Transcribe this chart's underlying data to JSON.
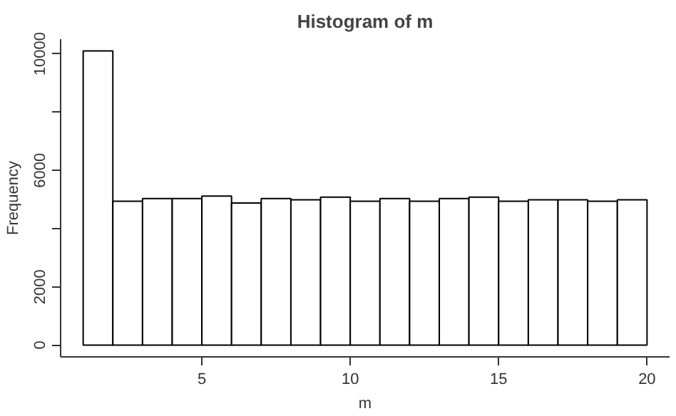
{
  "chart_data": {
    "type": "histogram",
    "title": "Histogram of m",
    "xlabel": "m",
    "ylabel": "Frequency",
    "bins": [
      1,
      2,
      3,
      4,
      5,
      6,
      7,
      8,
      9,
      10,
      11,
      12,
      13,
      14,
      15,
      16,
      17,
      18,
      19,
      20
    ],
    "values": [
      10100,
      4940,
      5030,
      5030,
      5120,
      4880,
      5030,
      4990,
      5080,
      4940,
      5030,
      4940,
      5030,
      5080,
      4940,
      4990,
      4990,
      4940,
      4990
    ],
    "color": "#ffffff",
    "xlim": [
      0.24,
      20.76
    ],
    "ylim": [
      -404,
      10504
    ],
    "xticks": [
      5,
      10,
      15,
      20
    ],
    "yticks": [
      0,
      2000,
      {
        "value": 4000,
        "label": null
      },
      6000,
      {
        "value": 8000,
        "label": null
      },
      10000
    ],
    "grid": false
  }
}
